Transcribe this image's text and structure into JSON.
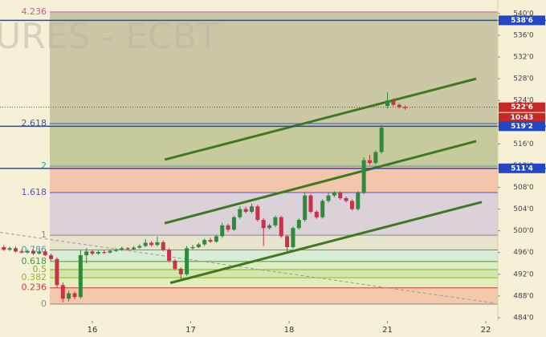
{
  "chart_data": {
    "type": "candlestick",
    "watermark": "URES - ECBT",
    "x": [
      -0.9,
      -0.84,
      -0.78,
      -0.72,
      -0.66,
      -0.6,
      -0.54,
      -0.48,
      -0.42,
      -0.36,
      -0.3,
      -0.24,
      -0.18,
      -0.12,
      -0.06,
      0,
      0.06,
      0.12,
      0.18,
      0.24,
      0.3,
      0.36,
      0.42,
      0.48,
      0.54,
      0.6,
      0.66,
      0.72,
      0.78,
      0.84,
      0.9,
      0.96,
      1.02,
      1.08,
      1.14,
      1.2,
      1.26,
      1.32,
      1.38,
      1.44,
      1.5,
      1.56,
      1.62,
      1.68,
      1.74,
      1.8,
      1.86,
      1.92,
      1.98,
      2.04,
      2.1,
      2.16,
      2.22,
      2.28,
      2.34,
      2.4,
      2.46,
      2.52,
      2.58,
      2.64,
      2.7,
      2.76,
      2.82,
      2.88,
      2.94,
      3.0,
      3.06,
      3.12,
      3.18
    ],
    "open": [
      497,
      496.5,
      496.8,
      496.2,
      496,
      496.3,
      495.8,
      496.2,
      495.5,
      494.8,
      490,
      487.5,
      488.5,
      487.8,
      495.5,
      496.2,
      495.8,
      496.1,
      496,
      496.3,
      496.5,
      496.8,
      496.6,
      496.9,
      497.2,
      497.8,
      497.4,
      497.9,
      496.5,
      494.5,
      493,
      492,
      496.8,
      497,
      497.5,
      498.3,
      498,
      499,
      501,
      500.2,
      502.5,
      504,
      503.5,
      504.5,
      502,
      500.5,
      501,
      502.5,
      499,
      497,
      500.5,
      502,
      506.5,
      503.5,
      502.5,
      505.5,
      506.5,
      507,
      506,
      505.5,
      504,
      507,
      513,
      512.5,
      514.5,
      523,
      524,
      523.2,
      522.8
    ],
    "high": [
      497.4,
      497.1,
      497.1,
      496.5,
      496.6,
      496.6,
      496.5,
      496.5,
      495.8,
      495.1,
      490.5,
      489,
      488.8,
      496.5,
      496.8,
      496.5,
      496.4,
      496.4,
      496.6,
      496.8,
      497.1,
      497,
      497.2,
      497.5,
      498.5,
      498.1,
      499,
      498.2,
      496.8,
      494.8,
      493.3,
      497.2,
      497.4,
      497.8,
      498.6,
      498.7,
      499.3,
      501.5,
      501.3,
      502.8,
      504.5,
      504.4,
      505,
      504.8,
      502.3,
      501.3,
      502.8,
      502.8,
      499.3,
      500.8,
      502.3,
      507,
      506.8,
      503.8,
      505.8,
      507,
      507.3,
      507.3,
      506.3,
      505.8,
      507.3,
      513.5,
      514,
      514.8,
      519.5,
      525.5,
      524.4,
      523.5,
      523.1
    ],
    "low": [
      496.3,
      496.3,
      496,
      495.8,
      495.8,
      495.5,
      495.6,
      495.3,
      494.5,
      489.5,
      486.8,
      487,
      487.4,
      487.5,
      494,
      495.5,
      495.6,
      495.7,
      495.8,
      496.1,
      496.3,
      496.4,
      496.4,
      496.7,
      497,
      497.1,
      497.1,
      496.2,
      494.2,
      492.7,
      490.8,
      491.7,
      496.5,
      496.8,
      497.2,
      497.8,
      497.8,
      498.7,
      499.8,
      500,
      502.2,
      503.2,
      503.2,
      501.7,
      497.2,
      500.2,
      500.7,
      498.7,
      496.2,
      496.7,
      500.2,
      501.7,
      503.2,
      502.2,
      502.2,
      505.2,
      506.2,
      505.7,
      505.2,
      503.7,
      503.7,
      506.7,
      512.2,
      512.2,
      514.2,
      522.5,
      522.9,
      522.5,
      522.3
    ],
    "close": [
      496.5,
      496.8,
      496.2,
      496,
      496.3,
      495.8,
      496.2,
      495.5,
      494.8,
      490,
      487.5,
      488.5,
      487.8,
      495.5,
      496.2,
      495.8,
      496.1,
      496,
      496.3,
      496.5,
      496.8,
      496.6,
      496.9,
      497.2,
      497.8,
      497.4,
      497.9,
      496.5,
      494.5,
      493,
      492,
      496.8,
      497,
      497.5,
      498.3,
      498,
      499,
      501,
      500.2,
      502.5,
      504,
      503.5,
      504.5,
      502,
      500.5,
      501,
      502.5,
      499,
      497,
      500.5,
      502,
      506.5,
      503.5,
      502.5,
      505.5,
      506.5,
      507,
      506,
      505.5,
      504,
      507,
      513,
      512.5,
      514.5,
      519,
      524,
      523.2,
      522.8,
      522.6
    ],
    "up_color": "#2e8b3a",
    "down_color": "#c8324a",
    "xlim": [
      -0.939,
      4.122
    ],
    "xticks": [
      {
        "value": 0,
        "label": "16"
      },
      {
        "value": 1,
        "label": "17"
      },
      {
        "value": 2,
        "label": "18"
      },
      {
        "value": 3,
        "label": "21"
      },
      {
        "value": 4,
        "label": "22"
      }
    ],
    "ylim": [
      483.4,
      542.5
    ],
    "yticks": [
      {
        "value": 484,
        "label": "484'0"
      },
      {
        "value": 488,
        "label": "488'0"
      },
      {
        "value": 492,
        "label": "492'0"
      },
      {
        "value": 496,
        "label": "496'0"
      },
      {
        "value": 500,
        "label": "500'0"
      },
      {
        "value": 504,
        "label": "504'0"
      },
      {
        "value": 508,
        "label": "508'0"
      },
      {
        "value": 512,
        "label": "512'0"
      },
      {
        "value": 516,
        "label": "516'0"
      },
      {
        "value": 520,
        "label": "520'0"
      },
      {
        "value": 524,
        "label": "524'0"
      },
      {
        "value": 528,
        "label": "528'0"
      },
      {
        "value": 532,
        "label": "532'0"
      },
      {
        "value": 536,
        "label": "536'0"
      },
      {
        "value": 540,
        "label": "540'0"
      }
    ],
    "fib": {
      "p0": 486.5,
      "p1": 499.2,
      "x": [
        -0.433,
        4.122
      ],
      "levels": [
        {
          "level": 0,
          "color": "#8a8a8a",
          "fill": "#f4c9ab"
        },
        {
          "level": 0.236,
          "color": "#d03a3a",
          "fill": "#e3ecbc"
        },
        {
          "level": 0.382,
          "color": "#94b62e",
          "fill": "#d3e7ad"
        },
        {
          "level": 0.5,
          "color": "#7fae2e",
          "fill": "#ddefc2"
        },
        {
          "level": 0.618,
          "color": "#3c9c3c",
          "fill": "#d9ecd6"
        },
        {
          "level": 0.786,
          "color": "#4a98c4",
          "fill": "#e6e4cc"
        },
        {
          "level": 1,
          "color": "#8a8a8a",
          "fill": "#dbd1d8"
        },
        {
          "level": 1.618,
          "color": "#5a4fc0",
          "fill": "#f2c6ab"
        },
        {
          "level": 2,
          "color": "#2fa0a0",
          "fill": "#c7ca9d"
        },
        {
          "level": 2.618,
          "color": "#3c5aa8",
          "fill": "#cbc8a7"
        },
        {
          "level": 4.236,
          "color": "#c0609c"
        }
      ]
    },
    "trendlines": [
      {
        "x": [
          -0.939,
          4.082
        ],
        "y": [
          499.7,
          486.7
        ],
        "color": "#9a9a9a",
        "style": "dashed"
      },
      {
        "x": [
          0.735,
          3.902
        ],
        "y": [
          513.1,
          528.0
        ],
        "color": "#3d7a1e",
        "style": "solid"
      },
      {
        "x": [
          0.735,
          3.902
        ],
        "y": [
          501.4,
          516.5
        ],
        "color": "#3d7a1e",
        "style": "solid"
      },
      {
        "x": [
          0.792,
          3.959
        ],
        "y": [
          490.4,
          505.3
        ],
        "color": "#3d7a1e",
        "style": "solid"
      }
    ],
    "price_lines": [
      {
        "value": 538.75,
        "label": "538'6",
        "color": "#2346c4",
        "style": "solid"
      },
      {
        "value": 522.75,
        "label": "522'6",
        "color": "#c62828",
        "style": "dotted",
        "countdown": "10:43"
      },
      {
        "value": 519.25,
        "label": "519'2",
        "color": "#2346c4",
        "style": "solid"
      },
      {
        "value": 511.5,
        "label": "511'4",
        "color": "#2346c4",
        "style": "solid"
      }
    ]
  }
}
